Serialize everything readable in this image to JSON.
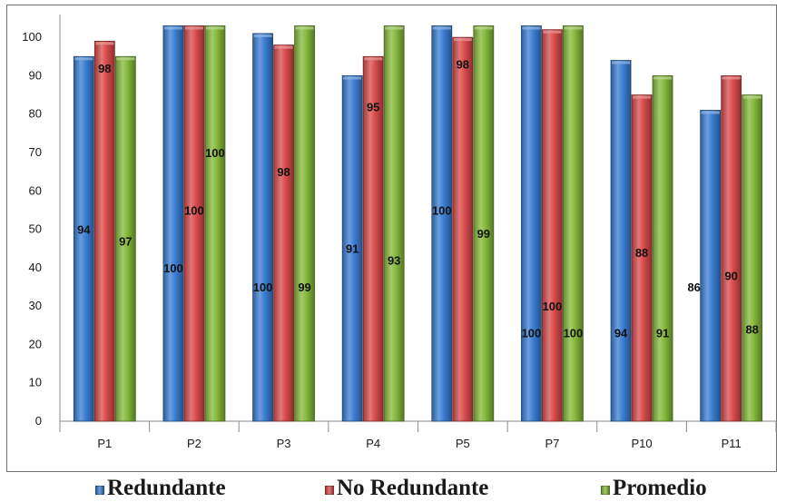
{
  "chart_data": {
    "type": "bar",
    "categories": [
      "P1",
      "P2",
      "P3",
      "P4",
      "P5",
      "P7",
      "P10",
      "P11"
    ],
    "series": [
      {
        "name": "Redundante",
        "color": "#3a7dd2",
        "values": [
          94,
          100,
          100,
          91,
          100,
          100,
          94,
          86
        ],
        "bar_values": [
          95,
          103,
          101,
          90,
          103,
          103,
          94,
          81
        ]
      },
      {
        "name": "No Redundante",
        "color": "#d84a4a",
        "values": [
          98,
          100,
          98,
          95,
          98,
          100,
          88,
          90
        ],
        "bar_values": [
          99,
          103,
          98,
          95,
          100,
          102,
          85,
          90
        ]
      },
      {
        "name": "Promedio",
        "color": "#84b83a",
        "values": [
          97,
          100,
          99,
          93,
          99,
          100,
          91,
          88
        ],
        "bar_values": [
          95,
          103,
          103,
          103,
          103,
          103,
          90,
          85
        ]
      }
    ],
    "yticks": [
      0,
      10,
      20,
      30,
      40,
      50,
      60,
      70,
      80,
      90,
      100
    ],
    "ylim": [
      0,
      105
    ],
    "grid": false,
    "legend_position": "bottom",
    "title": "",
    "xlabel": "",
    "ylabel": ""
  }
}
